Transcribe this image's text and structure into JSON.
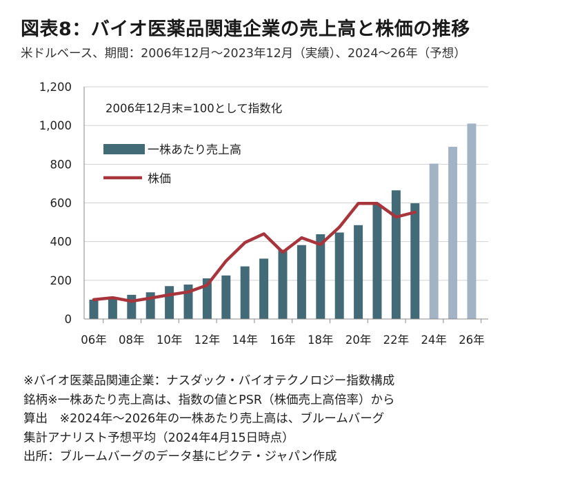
{
  "title": "図表8：バイオ医薬品関連企業の売上高と株価の推移",
  "subtitle": "米ドルベース、期間：2006年12月～2023年12月（実績）、2024～26年（予想）",
  "chart_data": {
    "type": "bar",
    "annotation": "2006年12月末=100として指数化",
    "x_tick_labels": [
      "06年",
      "08年",
      "10年",
      "12年",
      "14年",
      "16年",
      "18年",
      "20年",
      "22年",
      "24年",
      "26年"
    ],
    "years": [
      2006,
      2007,
      2008,
      2009,
      2010,
      2011,
      2012,
      2013,
      2014,
      2015,
      2016,
      2017,
      2018,
      2019,
      2020,
      2021,
      2022,
      2023,
      2024,
      2025,
      2026
    ],
    "ylim": [
      0,
      1200
    ],
    "yticks": [
      0,
      200,
      400,
      600,
      800,
      1000,
      1200
    ],
    "ytick_labels": [
      "0",
      "200",
      "400",
      "600",
      "800",
      "1,000",
      "1,200"
    ],
    "grid": true,
    "legend_position": "upper-left",
    "series": [
      {
        "name": "一株あたり売上高",
        "kind": "bar",
        "color": "#436b77",
        "forecast_color": "#a3b3c6",
        "forecast_from": 2024,
        "values": [
          100,
          105,
          125,
          138,
          170,
          178,
          210,
          225,
          272,
          312,
          358,
          382,
          438,
          447,
          485,
          592,
          665,
          598,
          803,
          890,
          1010
        ]
      },
      {
        "name": "株価",
        "kind": "line",
        "color": "#a8343c",
        "values": [
          100,
          110,
          92,
          108,
          125,
          140,
          175,
          300,
          395,
          440,
          345,
          420,
          385,
          475,
          597,
          597,
          527,
          552
        ]
      }
    ]
  },
  "notes": [
    "※バイオ医薬品関連企業：ナスダック・バイオテクノロジー指数構成",
    "銘柄※一株あたり売上高は、指数の値とPSR（株価売上高倍率）から",
    "算出　※2024年～2026年の一株あたり売上高は、ブルームバーグ",
    "集計アナリスト予想平均（2024年4月15日時点）",
    "出所：ブルームバーグのデータ基にピクテ・ジャパン作成"
  ]
}
